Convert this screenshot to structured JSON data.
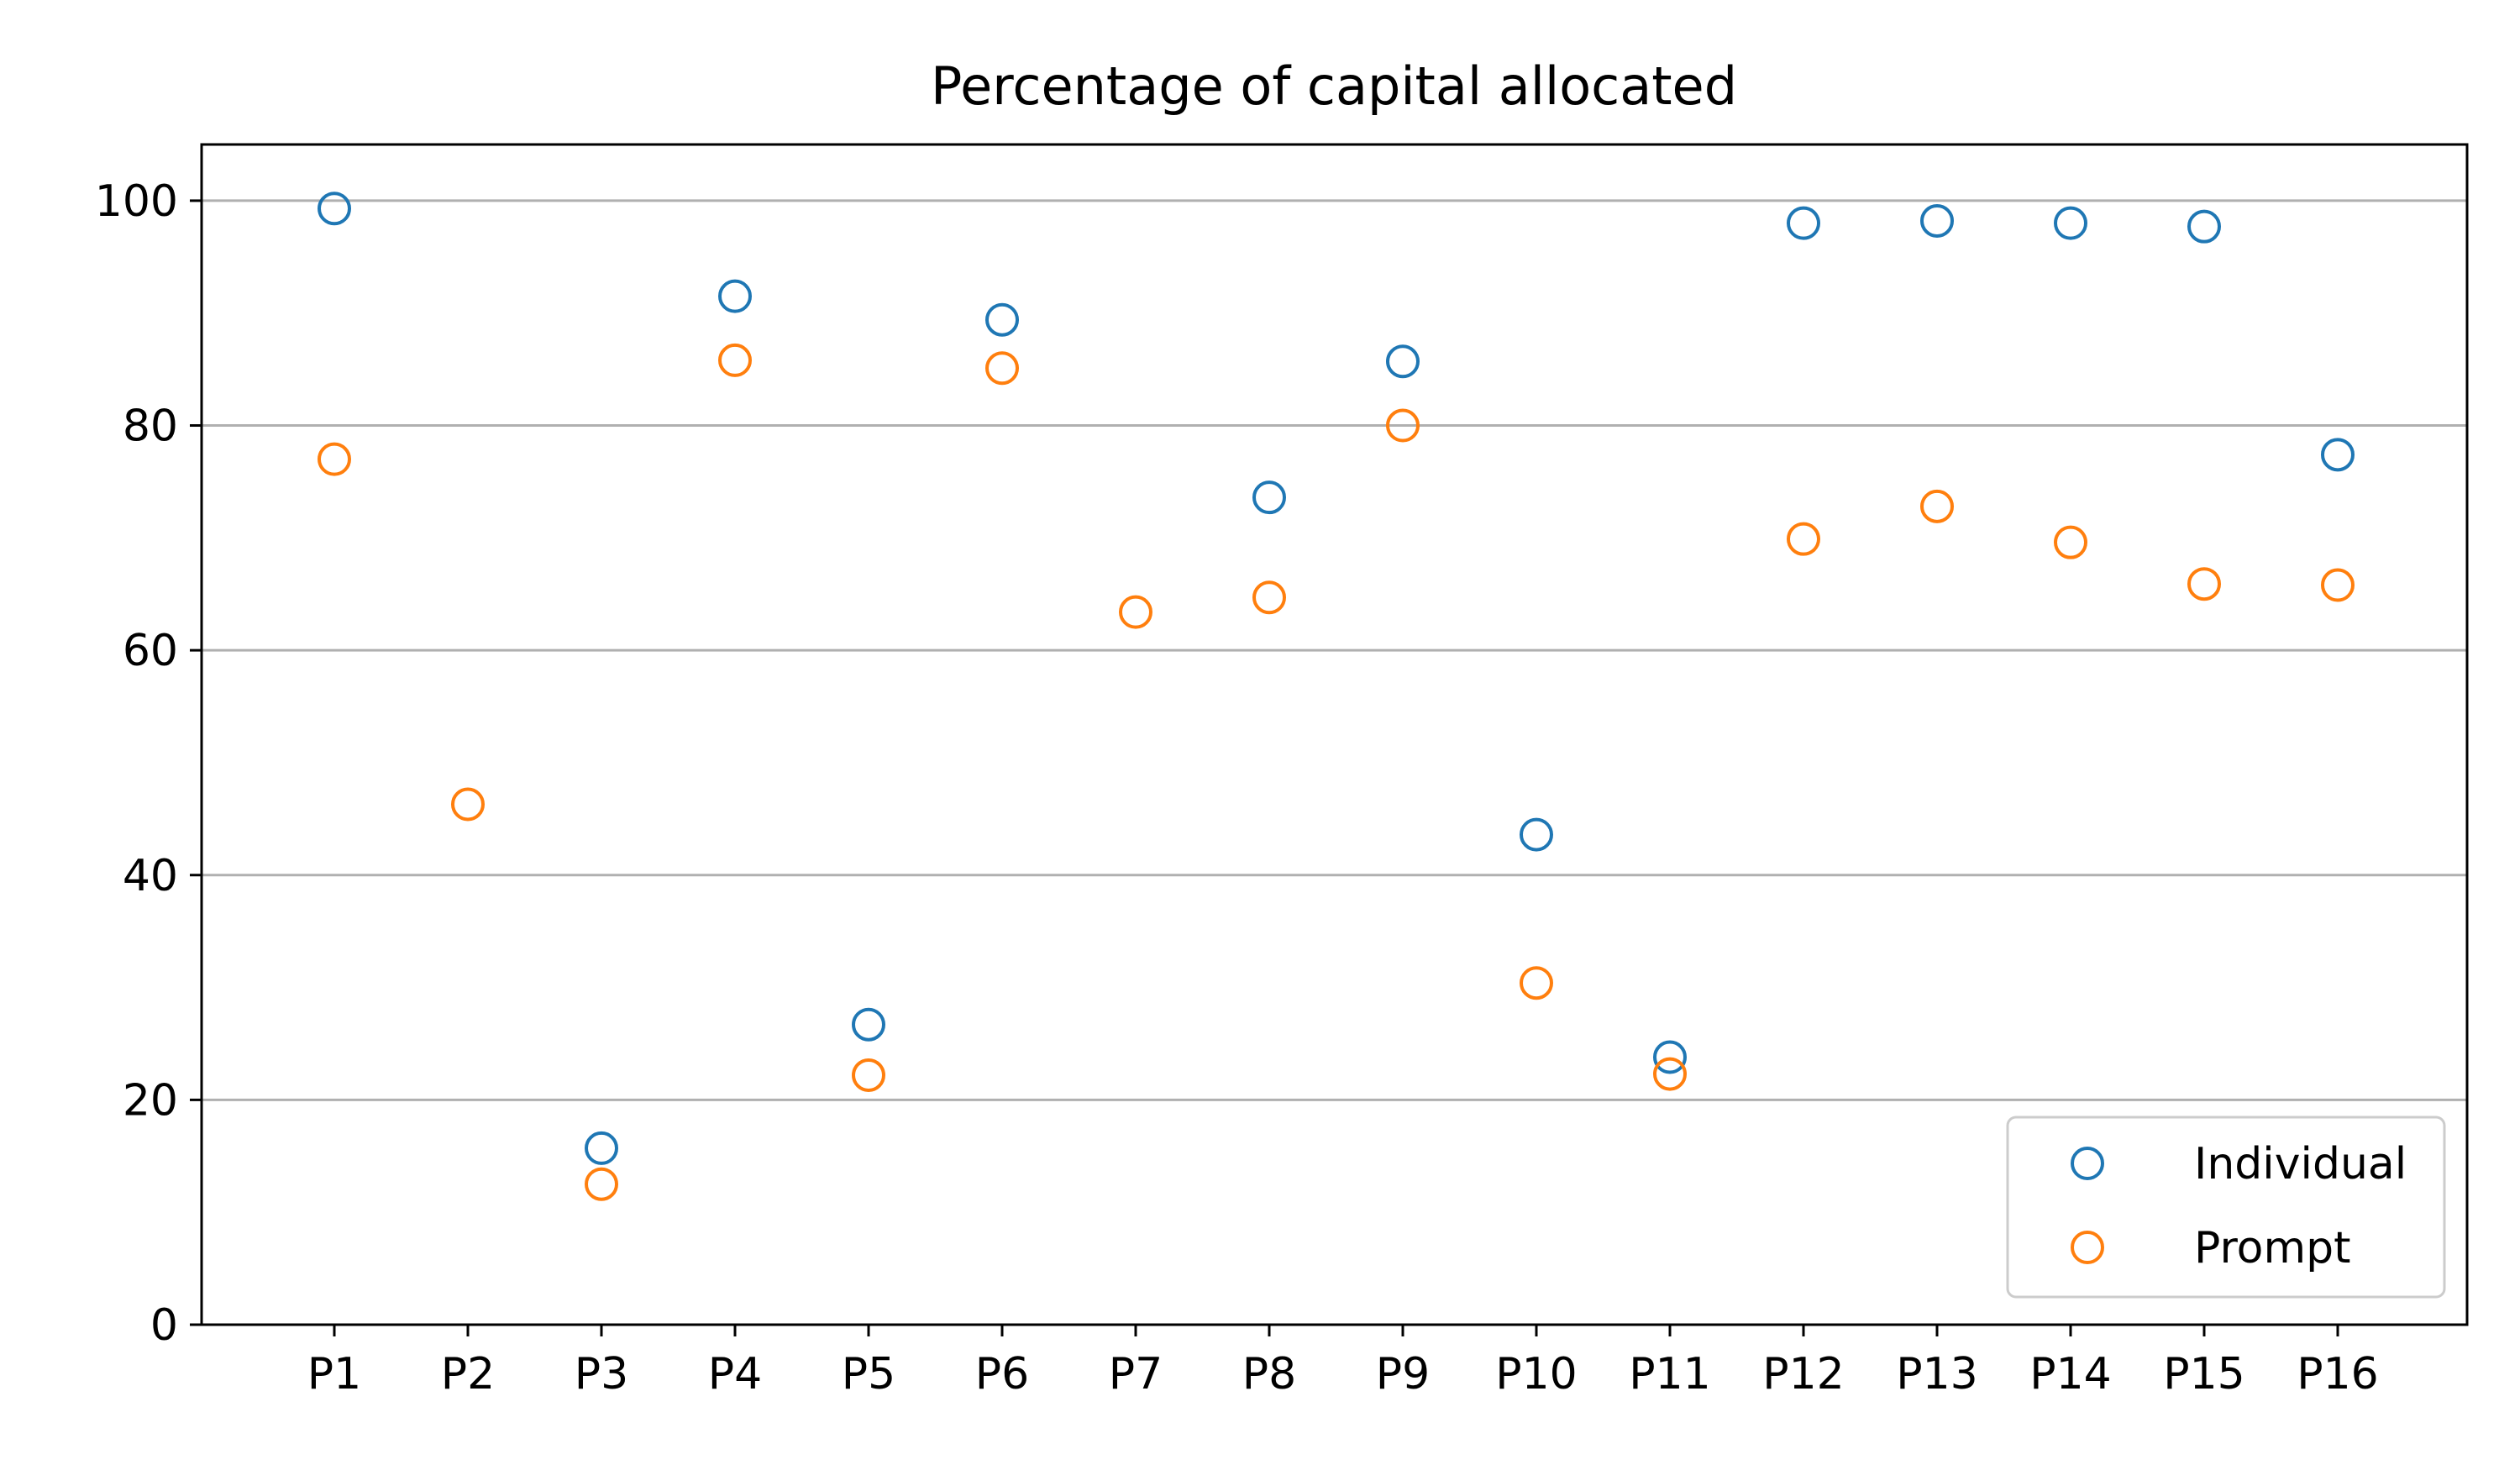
{
  "chart_data": {
    "type": "scatter",
    "title": "Percentage of capital allocated",
    "xlabel": "",
    "ylabel": "",
    "categories": [
      "P1",
      "P2",
      "P3",
      "P4",
      "P5",
      "P6",
      "P7",
      "P8",
      "P9",
      "P10",
      "P11",
      "P12",
      "P13",
      "P14",
      "P15",
      "P16"
    ],
    "ylim": [
      0,
      105
    ],
    "yticks": [
      "0",
      "20",
      "40",
      "60",
      "80",
      "100"
    ],
    "grid": "horizontal",
    "legend_position": "lower-right",
    "marker": "hollow-circle",
    "series": [
      {
        "name": "Individual",
        "color": "#1f77b4",
        "values": [
          99.3,
          null,
          15.7,
          91.5,
          26.7,
          89.4,
          null,
          73.6,
          85.7,
          43.6,
          23.8,
          98.0,
          98.2,
          98.0,
          97.7,
          77.4
        ]
      },
      {
        "name": "Prompt",
        "color": "#ff7f0e",
        "values": [
          77.0,
          46.3,
          12.5,
          85.8,
          22.2,
          85.1,
          63.4,
          64.7,
          80.0,
          30.4,
          22.3,
          69.9,
          72.8,
          69.6,
          65.9,
          65.8
        ]
      }
    ]
  }
}
